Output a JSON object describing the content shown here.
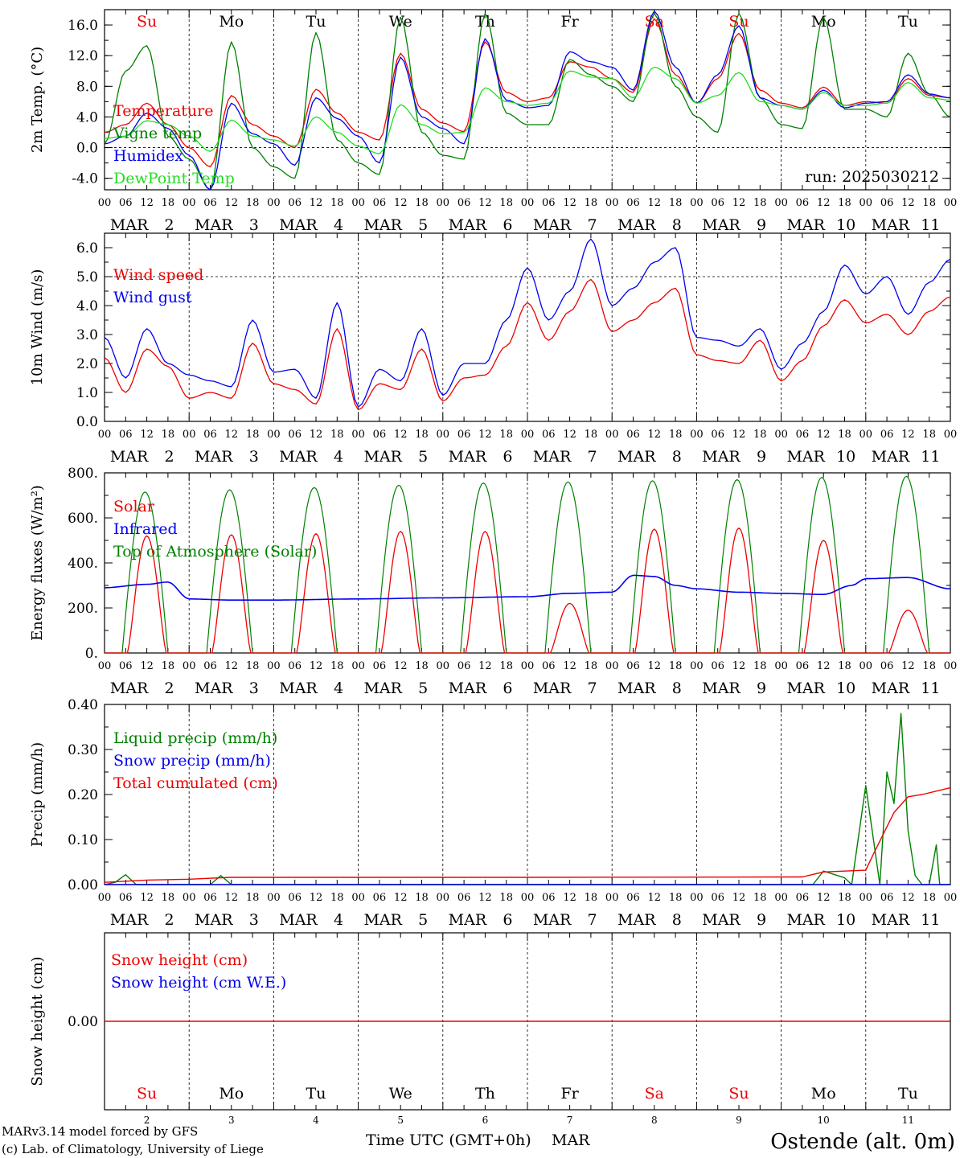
{
  "colors": {
    "red": "#ee0000",
    "blue": "#0000ee",
    "green": "#008000",
    "lightgreen": "#22dd22",
    "black": "#000000"
  },
  "days": [
    {
      "abbr": "Su",
      "color": "red",
      "month": "MAR",
      "date": "2"
    },
    {
      "abbr": "Mo",
      "color": "black",
      "month": "MAR",
      "date": "3"
    },
    {
      "abbr": "Tu",
      "color": "black",
      "month": "MAR",
      "date": "4"
    },
    {
      "abbr": "We",
      "color": "black",
      "month": "MAR",
      "date": "5"
    },
    {
      "abbr": "Th",
      "color": "black",
      "month": "MAR",
      "date": "6"
    },
    {
      "abbr": "Fr",
      "color": "black",
      "month": "MAR",
      "date": "7"
    },
    {
      "abbr": "Sa",
      "color": "red",
      "month": "MAR",
      "date": "8"
    },
    {
      "abbr": "Su",
      "color": "red",
      "month": "MAR",
      "date": "9"
    },
    {
      "abbr": "Mo",
      "color": "black",
      "month": "MAR",
      "date": "10"
    },
    {
      "abbr": "Tu",
      "color": "black",
      "month": "MAR",
      "date": "11"
    }
  ],
  "hour_ticks": [
    "00",
    "06",
    "12",
    "18"
  ],
  "hour_tick_final": "00",
  "run_label": "run: 2025030212",
  "footer": {
    "credit_line1": "MARv3.14 model forced by GFS",
    "credit_line2": "(c) Lab. of Climatology, University of Liege",
    "time_axis_label": "Time UTC (GMT+0h)",
    "month_label": "MAR",
    "station": "Ostende (alt. 0m)"
  },
  "chart_data": [
    {
      "id": "temperature",
      "type": "line",
      "ylabel": "2m Temp. (°C)",
      "ylim": [
        -5.5,
        18.0
      ],
      "yticks": [
        -4.0,
        0.0,
        4.0,
        8.0,
        12.0,
        16.0
      ],
      "ytick_labels": [
        "-4.0",
        "0.0",
        "4.0",
        "8.0",
        "12.0",
        "16.0"
      ],
      "zero_line": true,
      "x_hours": [
        0,
        6,
        12,
        18,
        24,
        30,
        36,
        42,
        48,
        54,
        60,
        66,
        72,
        78,
        84,
        90,
        96,
        102,
        108,
        114,
        120,
        126,
        132,
        138,
        144,
        150,
        156,
        162,
        168,
        174,
        180,
        186,
        192,
        198,
        204,
        210,
        216,
        222,
        228,
        234,
        240
      ],
      "series": [
        {
          "name": "Temperature",
          "color": "red",
          "values": [
            2.0,
            3.0,
            5.8,
            3.0,
            0.0,
            -2.5,
            6.8,
            3.0,
            1.5,
            0.0,
            7.6,
            4.5,
            2.0,
            1.0,
            12.3,
            5.0,
            3.2,
            2.1,
            13.8,
            7.2,
            6.0,
            6.5,
            11.2,
            10.5,
            9.0,
            7.2,
            16.8,
            9.5,
            5.8,
            9.0,
            14.9,
            7.5,
            5.8,
            5.2,
            7.9,
            5.5,
            6.0,
            5.8,
            9.0,
            6.8,
            6.5
          ]
        },
        {
          "name": "Vigne temp",
          "color": "green",
          "values": [
            0.5,
            10.0,
            13.3,
            1.5,
            -1.5,
            -5.5,
            13.8,
            0.0,
            -2.5,
            -4.0,
            15.0,
            1.0,
            -2.0,
            -3.5,
            17.0,
            2.0,
            -1.0,
            -1.5,
            17.5,
            4.5,
            3.0,
            3.0,
            11.5,
            9.5,
            8.0,
            6.0,
            17.5,
            8.0,
            4.0,
            2.0,
            17.5,
            6.5,
            3.0,
            2.5,
            17.0,
            5.0,
            5.0,
            4.0,
            12.3,
            7.0,
            4.0
          ]
        },
        {
          "name": "Humidex",
          "color": "blue",
          "values": [
            0.5,
            1.5,
            4.5,
            2.5,
            -1.0,
            -5.5,
            5.8,
            1.8,
            0.5,
            -2.3,
            6.5,
            3.8,
            1.5,
            -2.0,
            11.8,
            4.0,
            2.5,
            0.5,
            14.2,
            6.2,
            5.2,
            5.5,
            12.5,
            11.2,
            10.5,
            7.5,
            17.8,
            10.5,
            5.8,
            9.5,
            15.9,
            6.5,
            5.5,
            5.0,
            7.5,
            5.2,
            5.8,
            6.0,
            9.5,
            7.0,
            6.5
          ]
        },
        {
          "name": "DewPoint Temp",
          "color": "lightgreen",
          "values": [
            1.2,
            1.5,
            3.5,
            3.0,
            1.5,
            -0.5,
            3.6,
            1.5,
            1.0,
            0.2,
            4.0,
            2.0,
            0.2,
            -0.8,
            5.6,
            3.0,
            1.8,
            2.0,
            7.8,
            6.0,
            5.5,
            5.8,
            10.0,
            9.2,
            9.0,
            6.5,
            10.5,
            9.0,
            5.8,
            6.8,
            9.8,
            6.0,
            5.5,
            5.0,
            7.2,
            5.5,
            5.5,
            5.8,
            8.5,
            6.5,
            6.2
          ]
        }
      ],
      "legend": [
        "Temperature",
        "Vigne temp",
        "Humidex",
        "DewPoint Temp"
      ]
    },
    {
      "id": "wind",
      "type": "line",
      "ylabel": "10m Wind (m/s)",
      "ylim": [
        0.0,
        6.5
      ],
      "yticks": [
        0.0,
        1.0,
        2.0,
        3.0,
        4.0,
        5.0,
        6.0
      ],
      "ytick_labels": [
        "0.0",
        "1.0",
        "2.0",
        "3.0",
        "4.0",
        "5.0",
        "6.0"
      ],
      "ref_line": 5.0,
      "x_hours": [
        0,
        6,
        12,
        18,
        24,
        30,
        36,
        42,
        48,
        54,
        60,
        66,
        72,
        78,
        84,
        90,
        96,
        102,
        108,
        114,
        120,
        126,
        132,
        138,
        144,
        150,
        156,
        162,
        168,
        174,
        180,
        186,
        192,
        198,
        204,
        210,
        216,
        222,
        228,
        234,
        240
      ],
      "series": [
        {
          "name": "Wind speed",
          "color": "red",
          "values": [
            2.2,
            1.0,
            2.5,
            1.9,
            0.8,
            1.0,
            0.8,
            2.7,
            1.3,
            1.1,
            0.6,
            3.2,
            0.4,
            1.3,
            1.1,
            2.5,
            0.7,
            1.5,
            1.6,
            2.6,
            4.1,
            2.8,
            3.8,
            4.9,
            3.1,
            3.5,
            4.1,
            4.6,
            2.3,
            2.1,
            2.0,
            2.8,
            1.4,
            2.1,
            3.3,
            4.2,
            3.4,
            3.7,
            3.0,
            3.8,
            4.3
          ]
        },
        {
          "name": "Wind gust",
          "color": "blue",
          "values": [
            2.9,
            1.5,
            3.2,
            2.0,
            1.6,
            1.4,
            1.2,
            3.5,
            1.7,
            1.8,
            0.8,
            4.1,
            0.5,
            1.8,
            1.4,
            3.2,
            0.9,
            2.0,
            2.0,
            3.5,
            5.3,
            3.5,
            4.5,
            6.3,
            4.0,
            4.6,
            5.5,
            6.0,
            2.9,
            2.8,
            2.6,
            3.2,
            1.8,
            2.7,
            3.8,
            5.4,
            4.4,
            5.0,
            3.7,
            4.8,
            5.6
          ]
        }
      ],
      "legend": [
        "Wind speed",
        "Wind gust"
      ]
    },
    {
      "id": "energy",
      "type": "line",
      "ylabel": "Energy fluxes (W/m²)",
      "ylim": [
        0,
        800
      ],
      "yticks": [
        0,
        200,
        400,
        600,
        800
      ],
      "ytick_labels": [
        "0.",
        "200.",
        "400.",
        "600.",
        "800."
      ],
      "daily_peaks": {
        "toa": [
          715,
          725,
          735,
          745,
          755,
          760,
          765,
          770,
          780,
          785
        ],
        "solar": [
          520,
          525,
          530,
          540,
          540,
          220,
          550,
          555,
          500,
          190
        ],
        "infrared_x_hours": [
          0,
          12,
          18,
          24,
          36,
          48,
          72,
          96,
          120,
          132,
          144,
          150,
          156,
          162,
          168,
          180,
          192,
          204,
          212,
          216,
          228,
          240
        ],
        "infrared_values": [
          290,
          305,
          315,
          240,
          235,
          235,
          240,
          245,
          250,
          265,
          270,
          345,
          340,
          300,
          285,
          270,
          265,
          260,
          300,
          330,
          335,
          285
        ]
      },
      "series": [
        {
          "name": "Solar",
          "color": "red"
        },
        {
          "name": "Infrared",
          "color": "blue"
        },
        {
          "name": "Top of Atmosphere (Solar)",
          "color": "green"
        }
      ],
      "legend": [
        "Solar",
        "Infrared",
        "Top of Atmosphere (Solar)"
      ]
    },
    {
      "id": "precip",
      "type": "line",
      "ylabel": "Precip (mm/h)",
      "ylim": [
        0.0,
        0.4
      ],
      "yticks": [
        0.0,
        0.1,
        0.2,
        0.3,
        0.4
      ],
      "ytick_labels": [
        "0.00",
        "0.10",
        "0.20",
        "0.30",
        "0.40"
      ],
      "series": [
        {
          "name": "Liquid precip (mm/h)",
          "color": "green",
          "x_hours": [
            0,
            3,
            6,
            9,
            12,
            15,
            24,
            30,
            33,
            36,
            168,
            180,
            198,
            201,
            204,
            210,
            212,
            216,
            220,
            222,
            224,
            226,
            228,
            230,
            232,
            234,
            236,
            237,
            240
          ],
          "values": [
            0.0,
            0.005,
            0.022,
            0.0,
            0.0,
            0.0,
            0.0,
            0.0,
            0.02,
            0.0,
            0.0,
            0.0,
            0.0,
            0.0,
            0.03,
            0.015,
            0.0,
            0.22,
            0.0,
            0.25,
            0.18,
            0.38,
            0.12,
            0.02,
            0.0,
            0.0,
            0.088,
            0.0,
            0.0
          ]
        },
        {
          "name": "Snow precip (mm/h)",
          "color": "blue",
          "x_hours": [
            0,
            240
          ],
          "values": [
            0.0,
            0.0
          ]
        },
        {
          "name": "Total cumulated (cm)",
          "color": "red",
          "x_hours": [
            0,
            12,
            24,
            36,
            120,
            198,
            204,
            210,
            216,
            218,
            224,
            228,
            232,
            240
          ],
          "values": [
            0.005,
            0.01,
            0.012,
            0.016,
            0.016,
            0.017,
            0.028,
            0.03,
            0.032,
            0.065,
            0.16,
            0.195,
            0.2,
            0.215
          ]
        }
      ],
      "legend": [
        "Liquid precip (mm/h)",
        "Snow precip (mm/h)",
        "Total cumulated (cm)"
      ]
    },
    {
      "id": "snow",
      "type": "line",
      "ylabel": "Snow height (cm)",
      "ytick_labels": [
        "0.00"
      ],
      "series": [
        {
          "name": "Snow height (cm)",
          "color": "red",
          "x_hours": [
            0,
            240
          ],
          "values": [
            0.0,
            0.0
          ]
        },
        {
          "name": "Snow height (cm W.E.)",
          "color": "blue"
        }
      ],
      "legend": [
        "Snow height (cm)",
        "Snow height (cm W.E.)"
      ]
    }
  ]
}
